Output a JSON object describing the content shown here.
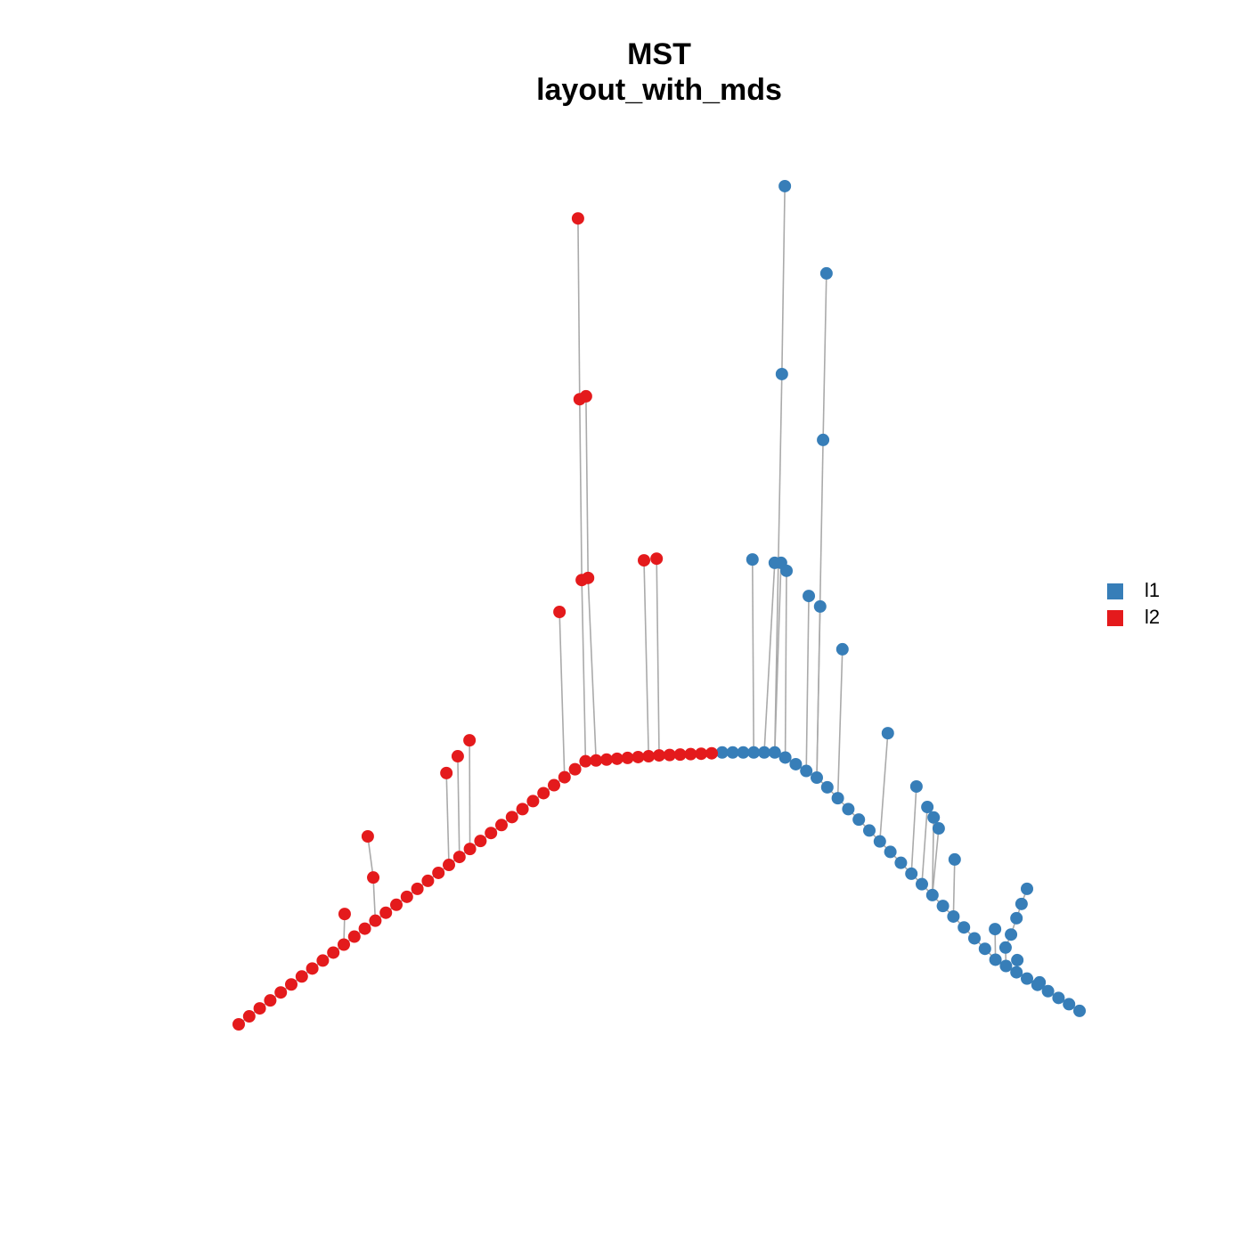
{
  "chart_data": {
    "type": "network",
    "title": "MST",
    "subtitle": "layout_with_mds",
    "xlim": [
      -1,
      1
    ],
    "ylim": [
      -1,
      1
    ],
    "edge_color": "#aaaaaa",
    "series": [
      {
        "name": "l1",
        "color": "#377eb8",
        "x": [
          0.15,
          0.175,
          0.2,
          0.225,
          0.25,
          0.275,
          0.3,
          0.325,
          0.35,
          0.375,
          0.4,
          0.425,
          0.45,
          0.475,
          0.5,
          0.525,
          0.55,
          0.575,
          0.6,
          0.625,
          0.65,
          0.675,
          0.7,
          0.725,
          0.75,
          0.775,
          0.8,
          0.825,
          0.85,
          0.875,
          0.9,
          0.925,
          0.95,
          0.975,
          1,
          0.299,
          0.292,
          0.398,
          0.39,
          0.222,
          0.275,
          0.29,
          0.303,
          0.356,
          0.383,
          0.436,
          0.544,
          0.612,
          0.638,
          0.653,
          0.665,
          0.703,
          0.875,
          0.862,
          0.85,
          0.837,
          0.824,
          0.799,
          0.852,
          0.905
        ],
        "y": [
          -0.352,
          -0.352,
          -0.352,
          -0.352,
          -0.352,
          -0.352,
          -0.364,
          -0.38,
          -0.396,
          -0.412,
          -0.435,
          -0.461,
          -0.487,
          -0.512,
          -0.538,
          -0.564,
          -0.589,
          -0.615,
          -0.641,
          -0.666,
          -0.692,
          -0.718,
          -0.743,
          -0.769,
          -0.795,
          -0.82,
          -0.846,
          -0.861,
          -0.876,
          -0.891,
          -0.906,
          -0.921,
          -0.937,
          -0.952,
          -0.968,
          0.998,
          0.55,
          0.79,
          0.393,
          0.108,
          0.1,
          0.1,
          0.081,
          0.021,
          -0.004,
          -0.106,
          -0.306,
          -0.433,
          -0.482,
          -0.507,
          -0.533,
          -0.607,
          -0.677,
          -0.713,
          -0.747,
          -0.786,
          -0.817,
          -0.773,
          -0.847,
          -0.9
        ]
      },
      {
        "name": "l2",
        "color": "#e41a1c",
        "x": [
          -1,
          -0.975,
          -0.95,
          -0.925,
          -0.9,
          -0.875,
          -0.85,
          -0.825,
          -0.8,
          -0.775,
          -0.75,
          -0.725,
          -0.7,
          -0.675,
          -0.65,
          -0.625,
          -0.6,
          -0.575,
          -0.55,
          -0.525,
          -0.5,
          -0.475,
          -0.45,
          -0.425,
          -0.4,
          -0.375,
          -0.35,
          -0.325,
          -0.3,
          -0.275,
          -0.25,
          -0.225,
          -0.2,
          -0.175,
          -0.15,
          -0.125,
          -0.1,
          -0.075,
          -0.05,
          -0.025,
          0,
          0.025,
          0.05,
          0.075,
          0.1,
          0.125,
          -0.193,
          -0.189,
          -0.174,
          -0.184,
          -0.169,
          -0.237,
          -0.036,
          -0.006,
          -0.451,
          -0.479,
          -0.506,
          -0.693,
          -0.68,
          -0.748
        ],
        "y": [
          -1,
          -0.981,
          -0.962,
          -0.943,
          -0.924,
          -0.905,
          -0.886,
          -0.867,
          -0.848,
          -0.829,
          -0.81,
          -0.791,
          -0.772,
          -0.753,
          -0.734,
          -0.715,
          -0.696,
          -0.677,
          -0.658,
          -0.639,
          -0.62,
          -0.601,
          -0.582,
          -0.563,
          -0.544,
          -0.525,
          -0.506,
          -0.487,
          -0.468,
          -0.449,
          -0.43,
          -0.411,
          -0.392,
          -0.373,
          -0.371,
          -0.369,
          -0.367,
          -0.365,
          -0.363,
          -0.361,
          -0.359,
          -0.358,
          -0.357,
          -0.356,
          -0.355,
          -0.354,
          0.921,
          0.49,
          0.497,
          0.059,
          0.064,
          -0.017,
          0.106,
          0.11,
          -0.323,
          -0.361,
          -0.401,
          -0.552,
          -0.65,
          -0.737
        ]
      }
    ],
    "edges": [
      [
        1,
        0,
        1,
        1
      ],
      [
        1,
        1,
        1,
        2
      ],
      [
        1,
        2,
        1,
        3
      ],
      [
        1,
        3,
        1,
        4
      ],
      [
        1,
        4,
        1,
        5
      ],
      [
        1,
        5,
        1,
        6
      ],
      [
        1,
        6,
        1,
        7
      ],
      [
        1,
        7,
        1,
        8
      ],
      [
        1,
        8,
        1,
        9
      ],
      [
        1,
        9,
        1,
        10
      ],
      [
        1,
        10,
        1,
        11
      ],
      [
        1,
        11,
        1,
        12
      ],
      [
        1,
        12,
        1,
        13
      ],
      [
        1,
        13,
        1,
        14
      ],
      [
        1,
        14,
        1,
        15
      ],
      [
        1,
        15,
        1,
        16
      ],
      [
        1,
        16,
        1,
        17
      ],
      [
        1,
        17,
        1,
        18
      ],
      [
        1,
        18,
        1,
        19
      ],
      [
        1,
        19,
        1,
        20
      ],
      [
        1,
        20,
        1,
        21
      ],
      [
        1,
        21,
        1,
        22
      ],
      [
        1,
        22,
        1,
        23
      ],
      [
        1,
        23,
        1,
        24
      ],
      [
        1,
        24,
        1,
        25
      ],
      [
        1,
        25,
        1,
        26
      ],
      [
        1,
        26,
        1,
        27
      ],
      [
        1,
        27,
        1,
        28
      ],
      [
        1,
        28,
        1,
        29
      ],
      [
        1,
        29,
        1,
        30
      ],
      [
        1,
        30,
        1,
        31
      ],
      [
        1,
        31,
        1,
        32
      ],
      [
        1,
        32,
        1,
        33
      ],
      [
        1,
        33,
        1,
        34
      ],
      [
        1,
        34,
        1,
        35
      ],
      [
        1,
        35,
        1,
        36
      ],
      [
        1,
        36,
        1,
        37
      ],
      [
        1,
        37,
        1,
        38
      ],
      [
        1,
        38,
        1,
        39
      ],
      [
        1,
        39,
        1,
        40
      ],
      [
        1,
        40,
        1,
        41
      ],
      [
        1,
        41,
        1,
        42
      ],
      [
        1,
        42,
        1,
        43
      ],
      [
        1,
        43,
        1,
        44
      ],
      [
        1,
        44,
        1,
        45
      ],
      [
        1,
        45,
        0,
        0
      ],
      [
        0,
        0,
        0,
        1
      ],
      [
        0,
        1,
        0,
        2
      ],
      [
        0,
        2,
        0,
        3
      ],
      [
        0,
        3,
        0,
        4
      ],
      [
        0,
        4,
        0,
        5
      ],
      [
        0,
        5,
        0,
        6
      ],
      [
        0,
        6,
        0,
        7
      ],
      [
        0,
        7,
        0,
        8
      ],
      [
        0,
        8,
        0,
        9
      ],
      [
        0,
        9,
        0,
        10
      ],
      [
        0,
        10,
        0,
        11
      ],
      [
        0,
        11,
        0,
        12
      ],
      [
        0,
        12,
        0,
        13
      ],
      [
        0,
        13,
        0,
        14
      ],
      [
        0,
        14,
        0,
        15
      ],
      [
        0,
        15,
        0,
        16
      ],
      [
        0,
        16,
        0,
        17
      ],
      [
        0,
        17,
        0,
        18
      ],
      [
        0,
        18,
        0,
        19
      ],
      [
        0,
        19,
        0,
        20
      ],
      [
        0,
        20,
        0,
        21
      ],
      [
        0,
        21,
        0,
        22
      ],
      [
        0,
        22,
        0,
        23
      ],
      [
        0,
        23,
        0,
        24
      ],
      [
        0,
        24,
        0,
        25
      ],
      [
        0,
        25,
        0,
        26
      ],
      [
        0,
        26,
        0,
        27
      ],
      [
        0,
        27,
        0,
        28
      ],
      [
        0,
        28,
        0,
        29
      ],
      [
        0,
        29,
        0,
        30
      ],
      [
        0,
        30,
        0,
        31
      ],
      [
        0,
        31,
        0,
        32
      ],
      [
        0,
        32,
        0,
        33
      ],
      [
        0,
        33,
        0,
        34
      ],
      [
        1,
        46,
        1,
        47
      ],
      [
        1,
        47,
        1,
        49
      ],
      [
        1,
        48,
        1,
        50
      ],
      [
        1,
        49,
        1,
        33
      ],
      [
        1,
        50,
        1,
        34
      ],
      [
        1,
        51,
        1,
        31
      ],
      [
        1,
        52,
        1,
        39
      ],
      [
        1,
        53,
        1,
        40
      ],
      [
        1,
        54,
        1,
        22
      ],
      [
        1,
        55,
        1,
        21
      ],
      [
        1,
        56,
        1,
        20
      ],
      [
        1,
        57,
        1,
        58
      ],
      [
        1,
        58,
        1,
        13
      ],
      [
        1,
        59,
        1,
        10
      ],
      [
        0,
        35,
        0,
        36
      ],
      [
        0,
        36,
        0,
        5
      ],
      [
        0,
        37,
        0,
        38
      ],
      [
        0,
        38,
        0,
        9
      ],
      [
        0,
        39,
        0,
        3
      ],
      [
        0,
        40,
        0,
        4
      ],
      [
        0,
        41,
        0,
        5
      ],
      [
        0,
        42,
        0,
        6
      ],
      [
        0,
        43,
        0,
        8
      ],
      [
        0,
        44,
        0,
        9
      ],
      [
        0,
        45,
        0,
        11
      ],
      [
        0,
        46,
        0,
        15
      ],
      [
        0,
        47,
        0,
        18
      ],
      [
        0,
        48,
        0,
        19
      ],
      [
        0,
        49,
        0,
        20
      ],
      [
        0,
        50,
        0,
        20
      ],
      [
        0,
        51,
        0,
        22
      ],
      [
        0,
        52,
        0,
        53
      ],
      [
        0,
        53,
        0,
        54
      ],
      [
        0,
        54,
        0,
        55
      ],
      [
        0,
        55,
        0,
        56
      ],
      [
        0,
        56,
        0,
        27
      ],
      [
        0,
        57,
        0,
        26
      ],
      [
        0,
        58,
        0,
        28
      ],
      [
        0,
        59,
        0,
        31
      ]
    ]
  }
}
